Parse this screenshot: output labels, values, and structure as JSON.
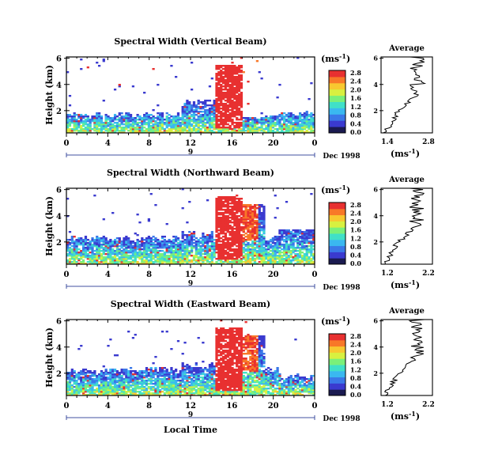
{
  "chart_data": [
    {
      "type": "heatmap",
      "title": "Spectral Width (Vertical Beam)",
      "ylabel": "Height (km)",
      "yticks": [
        "2",
        "4",
        "6"
      ],
      "xticks": [
        "0",
        "4",
        "8",
        "12",
        "16",
        "20",
        "0"
      ],
      "day_label": "9",
      "date_label": "Dec 1998",
      "colorbar": {
        "unit": "(ms",
        "unit_sup": "-1",
        "unit_close": ")",
        "ticks": [
          "0.0",
          "0.4",
          "0.8",
          "1.2",
          "1.6",
          "2.0",
          "2.4",
          "2.8"
        ]
      },
      "average": {
        "title": "Average",
        "xtick_left": "1.4",
        "xtick_right": "2.8",
        "xlabel": "(ms",
        "xlabel_sup": "-1",
        "xlabel_close": ")",
        "yticks": [
          "2",
          "4",
          "6"
        ]
      }
    },
    {
      "type": "heatmap",
      "title": "Spectral Width (Northward Beam)",
      "ylabel": "Height (km)",
      "yticks": [
        "2",
        "4",
        "6"
      ],
      "xticks": [
        "0",
        "4",
        "8",
        "12",
        "16",
        "20",
        "0"
      ],
      "day_label": "9",
      "date_label": "Dec 1998",
      "colorbar": {
        "unit": "(ms",
        "unit_sup": "-1",
        "unit_close": ")",
        "ticks": [
          "0.0",
          "0.4",
          "0.8",
          "1.2",
          "1.6",
          "2.0",
          "2.4",
          "2.8"
        ]
      },
      "average": {
        "title": "Average",
        "xtick_left": "1.2",
        "xtick_right": "2.2",
        "xlabel": "(ms",
        "xlabel_sup": "-1",
        "xlabel_close": ")",
        "yticks": [
          "2",
          "4",
          "6"
        ]
      }
    },
    {
      "type": "heatmap",
      "title": "Spectral Width (Eastward Beam)",
      "ylabel": "Height (km)",
      "yticks": [
        "2",
        "4",
        "6"
      ],
      "xticks": [
        "0",
        "4",
        "8",
        "12",
        "16",
        "20",
        "0"
      ],
      "day_label": "9",
      "date_label": "Dec 1998",
      "xlabel": "Local Time",
      "colorbar": {
        "unit": "(ms",
        "unit_sup": "-1",
        "unit_close": ")",
        "ticks": [
          "0.0",
          "0.4",
          "0.8",
          "1.2",
          "1.6",
          "2.0",
          "2.4",
          "2.8"
        ]
      },
      "average": {
        "title": "Average",
        "xtick_left": "1.2",
        "xtick_right": "2.2",
        "xlabel": "(ms",
        "xlabel_sup": "-1",
        "xlabel_close": ")",
        "yticks": [
          "2",
          "4",
          "6"
        ]
      }
    }
  ],
  "colors": {
    "scale": [
      "#1a1a50",
      "#3a3acf",
      "#3a78e8",
      "#3ab8f0",
      "#40e0c8",
      "#7af07a",
      "#d8f040",
      "#f8c830",
      "#f87828",
      "#e83030"
    ]
  }
}
